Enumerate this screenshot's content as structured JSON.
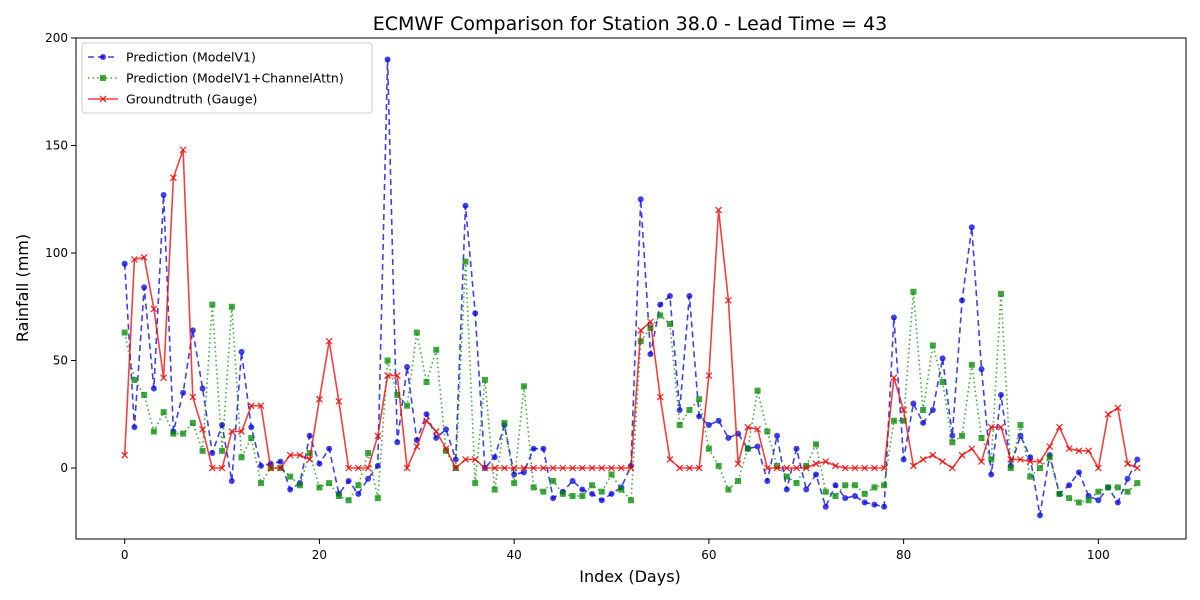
{
  "chart_data": {
    "type": "line",
    "title": "ECMWF Comparison for Station 38.0 - Lead Time = 43",
    "xlabel": "Index (Days)",
    "ylabel": "Rainfall (mm)",
    "xlim": [
      -5,
      109
    ],
    "ylim": [
      -33,
      200
    ],
    "x_ticks": [
      0,
      20,
      40,
      60,
      80,
      100
    ],
    "y_ticks": [
      0,
      50,
      100,
      150,
      200
    ],
    "grid": false,
    "legend_position": "upper-left",
    "series": [
      {
        "name": "Prediction (ModelV1)",
        "color": "#0000dd",
        "line_style": "dashed",
        "marker": "circle",
        "values": [
          95,
          19,
          84,
          37,
          127,
          17,
          35,
          64,
          37,
          7,
          20,
          -6,
          54,
          19,
          1,
          2,
          3,
          -10,
          -7,
          15,
          2,
          9,
          -12,
          -6,
          -12,
          -5,
          1,
          190,
          12,
          47,
          13,
          25,
          14,
          18,
          4,
          122,
          72,
          0,
          5,
          20,
          -3,
          -2,
          9,
          9,
          -14,
          -11,
          -6,
          -10,
          -12,
          -15,
          -12,
          -9,
          1,
          125,
          53,
          76,
          80,
          27,
          80,
          24,
          20,
          22,
          14,
          16,
          9,
          10,
          -6,
          15,
          -10,
          9,
          -10,
          -3,
          -18,
          -8,
          -14,
          -13,
          -16,
          -17,
          -18,
          70,
          4,
          30,
          21,
          27,
          51,
          15,
          78,
          112,
          46,
          -3,
          34,
          1,
          15,
          5,
          -22,
          6,
          -12,
          -8,
          -2,
          -13,
          -15,
          -9,
          -16,
          -5,
          4
        ]
      },
      {
        "name": "Prediction (ModelV1+ChannelAttn)",
        "color": "#008800",
        "line_style": "dotted",
        "marker": "square",
        "values": [
          63,
          41,
          34,
          17,
          26,
          16,
          16,
          21,
          8,
          76,
          8,
          75,
          5,
          14,
          -7,
          0,
          0,
          -4,
          -8,
          7,
          -9,
          -7,
          -13,
          -15,
          -8,
          7,
          -14,
          50,
          34,
          29,
          63,
          40,
          55,
          8,
          0,
          96,
          -7,
          41,
          -10,
          21,
          -7,
          38,
          -9,
          -11,
          -6,
          -12,
          -13,
          -13,
          -8,
          -11,
          -3,
          -10,
          -15,
          59,
          65,
          71,
          67,
          20,
          27,
          32,
          9,
          1,
          -10,
          -6,
          9,
          36,
          17,
          1,
          -4,
          -7,
          1,
          11,
          -11,
          -13,
          -8,
          -8,
          -12,
          -9,
          -8,
          22,
          22,
          82,
          27,
          57,
          40,
          12,
          15,
          48,
          14,
          4,
          81,
          0,
          20,
          -4,
          0,
          5,
          -12,
          -14,
          -16,
          -15,
          -11,
          -9,
          -9,
          -11,
          -7
        ]
      },
      {
        "name": "Groundtruth (Gauge)",
        "color": "#ee0000",
        "line_style": "solid",
        "marker": "x",
        "values": [
          6,
          97,
          98,
          74,
          42,
          135,
          148,
          33,
          18,
          0,
          0,
          17,
          17,
          29,
          29,
          0,
          0,
          6,
          6,
          4,
          32,
          59,
          31,
          0,
          0,
          0,
          15,
          43,
          43,
          0,
          10,
          22,
          17,
          9,
          0,
          4,
          4,
          0,
          0,
          0,
          0,
          0,
          0,
          0,
          0,
          0,
          0,
          0,
          0,
          0,
          0,
          0,
          0,
          64,
          68,
          33,
          4,
          0,
          0,
          0,
          43,
          120,
          78,
          2,
          19,
          18,
          0,
          0,
          0,
          0,
          0,
          2,
          3,
          1,
          0,
          0,
          0,
          0,
          0,
          42,
          27,
          1,
          4,
          6,
          3,
          0,
          6,
          9,
          3,
          19,
          19,
          4,
          4,
          3,
          3,
          10,
          19,
          9,
          8,
          8,
          0,
          25,
          28,
          2,
          0
        ]
      }
    ]
  }
}
